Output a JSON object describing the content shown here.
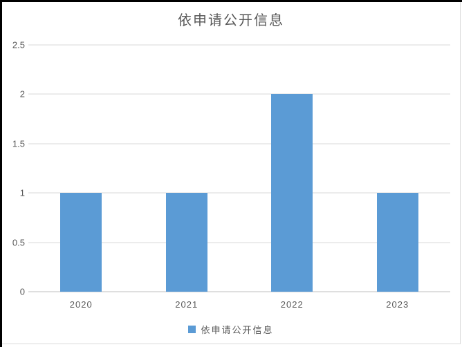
{
  "chart_data": {
    "type": "bar",
    "title": "依申请公开信息",
    "categories": [
      "2020",
      "2021",
      "2022",
      "2023"
    ],
    "series": [
      {
        "name": "依申请公开信息",
        "values": [
          1,
          1,
          2,
          1
        ]
      }
    ],
    "xlabel": "",
    "ylabel": "",
    "ylim": [
      0,
      2.5
    ],
    "ytick_labels": [
      "0",
      "0.5",
      "1",
      "1.5",
      "2",
      "2.5"
    ],
    "grid": true,
    "legend_position": "bottom"
  },
  "colors": {
    "bar": "#5b9bd5",
    "gridline": "#d9d9d9",
    "axis_line": "#bfbfbf",
    "text": "#595959",
    "frame_border": "#000000",
    "chart_border": "#d9d9d9",
    "background": "#ffffff"
  }
}
